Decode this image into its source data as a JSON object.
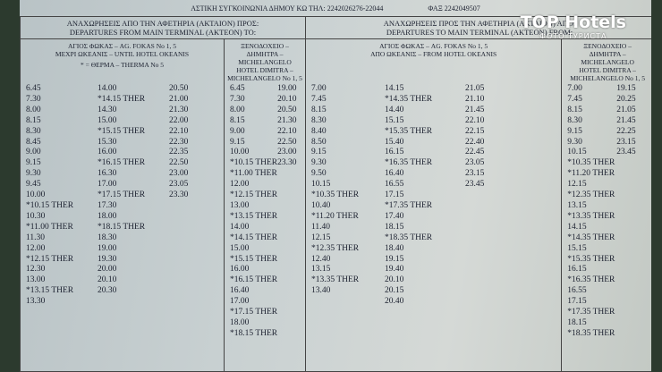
{
  "header": {
    "title": "ΑΣΤΙΚΗ ΣΥΓΚΟΙΝΩΝΙΑ ΔΗΜΟΥ ΚΩ ΤΗΛ: 2242026276-22044",
    "fax": "ΦΑΞ 2242049507"
  },
  "sections": [
    {
      "heading_gr": "ΑΝΑΧΩΡΗΣΕΙΣ ΑΠΟ ΤΗΝ ΑΦΕΤΗΡΙΑ (ΑΚΤΑΙΟΝ) ΠΡΟΣ:",
      "heading_en": "DEPARTURES FROM MAIN TERMINAL (AKTEON) TO:",
      "routes": [
        {
          "name_lines": [
            "ΑΓΙΟΣ ΦΩΚΑΣ – AG. FOKAS No 1, 5",
            "ΜΕΧΡΙ ΩΚΕΑΝΙΣ – UNTIL HOTEL OKEANIS"
          ],
          "note": "* = ΘΕΡΜΑ – THERMA No 5",
          "columns": [
            [
              "6.45",
              "7.30",
              "8.00",
              "8.15",
              "8.30",
              "8.45",
              "9.00",
              "9.15",
              "9.30",
              "9.45",
              "10.00",
              "*10.15 THER",
              "10.30",
              "*11.00 THER",
              "11.30",
              "12.00",
              "*12.15 THER",
              "12.30",
              "13.00",
              "*13.15 THER",
              "13.30"
            ],
            [
              "14.00",
              "*14.15 THER",
              "14.30",
              "15.00",
              "*15.15 THER",
              "15.30",
              "16.00",
              "*16.15 THER",
              "16.30",
              "17.00",
              "*17.15 THER",
              "17.30",
              "18.00",
              "*18.15 THER",
              "18.30",
              "19.00",
              "19.30",
              "20.00",
              "20.10",
              "20.30"
            ],
            [
              "20.50",
              "21.00",
              "21.30",
              "22.00",
              "22.10",
              "22.30",
              "22.35",
              "22.50",
              "23.00",
              "23.05",
              "23.30"
            ]
          ]
        },
        {
          "name_lines": [
            "ΞΕΝΟΔΟΧΕΙΟ –",
            "ΔΗΜΗΤΡΑ –",
            "MICHELANGELO",
            "HOTEL DIMITRA –",
            "MICHELANGELO No 1, 5"
          ],
          "columns": [
            [
              "6.45",
              "7.30",
              "8.00",
              "8.15",
              "9.00",
              "9.15",
              "10.00",
              "*10.15 THER",
              "*11.00 THER",
              "12.00",
              "*12.15 THER",
              "13.00",
              "*13.15 THER",
              "14.00",
              "*14.15 THER",
              "15.00",
              "*15.15 THER",
              "16.00",
              "*16.15 THER",
              "16.40",
              "17.00",
              "*17.15 THER",
              "18.00",
              "*18.15 THER"
            ],
            [
              "19.00",
              "20.10",
              "20.50",
              "21.30",
              "22.10",
              "22.50",
              "23.00",
              "23.30"
            ]
          ]
        }
      ]
    },
    {
      "heading_gr": "ΑΝΑΧΩΡΗΣΕΙΣ ΠΡΟΣ ΤΗΝ ΑΦΕΤΗΡΙΑ (ΑΚΤΑΙΟΝ) ΑΠΟ:",
      "heading_en": "DEPARTURES TO MAIN TERMINAL (AKTEON) FROM:",
      "routes": [
        {
          "name_lines": [
            "ΑΓΙΟΣ ΦΩΚΑΣ – AG. FOKAS No 1, 5",
            "ΑΠΟ ΩΚΕΑΝΙΣ – FROM HOTEL OKEANIS"
          ],
          "columns": [
            [
              "7.00",
              "7.45",
              "8.15",
              "8.30",
              "8.40",
              "8.50",
              "9.15",
              "9.30",
              "9.50",
              "10.15",
              "*10.35 THER",
              "10.40",
              "*11.20 THER",
              "11.40",
              "12.15",
              "*12.35 THER",
              "12.40",
              "13.15",
              "*13.35 THER",
              "13.40"
            ],
            [
              "14.15",
              "*14.35 THER",
              "14.40",
              "15.15",
              "*15.35 THER",
              "15.40",
              "16.15",
              "*16.35 THER",
              "16.40",
              "16.55",
              "17.15",
              "*17.35 THER",
              "17.40",
              "18.15",
              "*18.35 THER",
              "18.40",
              "19.15",
              "19.40",
              "20.10",
              "20.15",
              "20.40"
            ],
            [
              "21.05",
              "21.10",
              "21.45",
              "22.10",
              "22.15",
              "22.40",
              "22.45",
              "23.05",
              "23.15",
              "23.45"
            ]
          ]
        },
        {
          "name_lines": [
            "ΞΕΝΟΔΟΧΕΙΟ –",
            "ΔΗΜΗΤΡΑ –",
            "MICHELANGELO",
            "HOTEL DIMITRA –",
            "MICHELANGELO No 1, 5"
          ],
          "columns": [
            [
              "7.00",
              "7.45",
              "8.15",
              "8.30",
              "9.15",
              "9.30",
              "10.15",
              "*10.35 THER",
              "*11.20 THER",
              "12.15",
              "*12.35 THER",
              "13.15",
              "*13.35 THER",
              "14.15",
              "*14.35 THER",
              "15.15",
              "*15.35 THER",
              "16.15",
              "*16.35 THER",
              "16.55",
              "17.15",
              "*17.35 THER",
              "18.15",
              "*18.35 THER"
            ],
            [
              "19.15",
              "20.25",
              "21.05",
              "21.45",
              "22.25",
              "23.15",
              "23.45"
            ]
          ]
        }
      ]
    }
  ],
  "watermark": {
    "brand": "TOP Hotels",
    "caption": "ФОТО ТУРИСТА"
  }
}
